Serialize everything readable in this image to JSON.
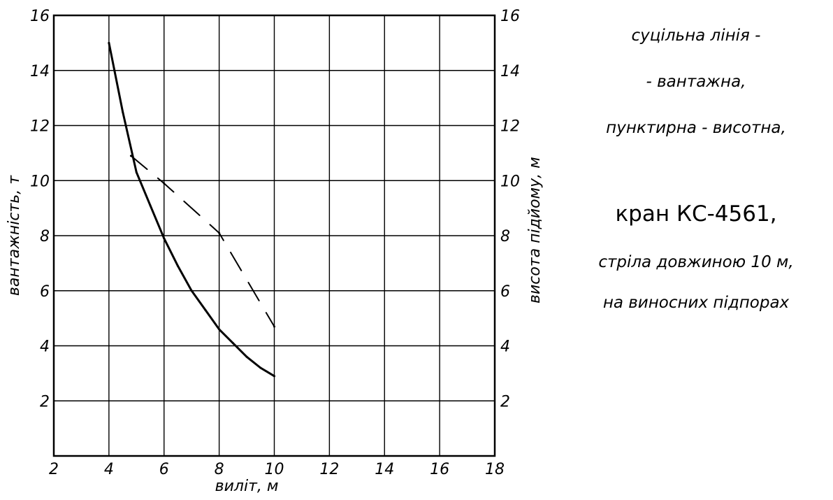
{
  "chart_data": {
    "type": "line",
    "xlabel": "виліт, м",
    "ylabel": "вантажність, т",
    "ylabel_right": "висота підйому, м",
    "xlim": [
      2,
      18
    ],
    "ylim": [
      0,
      16
    ],
    "x_ticks": [
      "2",
      "4",
      "6",
      "8",
      "10",
      "12",
      "14",
      "16",
      "18"
    ],
    "y_ticks_left": [
      "2",
      "4",
      "6",
      "8",
      "10",
      "12",
      "14",
      "16"
    ],
    "y_ticks_right": [
      "2",
      "4",
      "6",
      "8",
      "10",
      "12",
      "14",
      "16"
    ],
    "grid": true,
    "series": [
      {
        "style": "solid",
        "color": "#000000",
        "x": [
          4.0,
          4.5,
          5.0,
          5.5,
          6.0,
          6.5,
          7.0,
          7.5,
          8.0,
          8.5,
          9.0,
          9.5,
          10.0
        ],
        "y": [
          15.0,
          12.5,
          10.3,
          9.1,
          7.9,
          6.9,
          6.0,
          5.3,
          4.6,
          4.1,
          3.6,
          3.2,
          2.9
        ]
      },
      {
        "style": "dashed",
        "color": "#000000",
        "x": [
          4.8,
          6.0,
          8.0,
          10.0
        ],
        "y": [
          10.9,
          9.9,
          8.1,
          4.7
        ]
      }
    ]
  },
  "legend_text": {
    "line1": "суцільна лінія -",
    "line2": "- вантажна,",
    "line3": "пунктирна - висотна,",
    "line4": "кран КС-4561,",
    "line5": "стріла довжиною 10 м,",
    "line6": "на виносних підпорах"
  }
}
